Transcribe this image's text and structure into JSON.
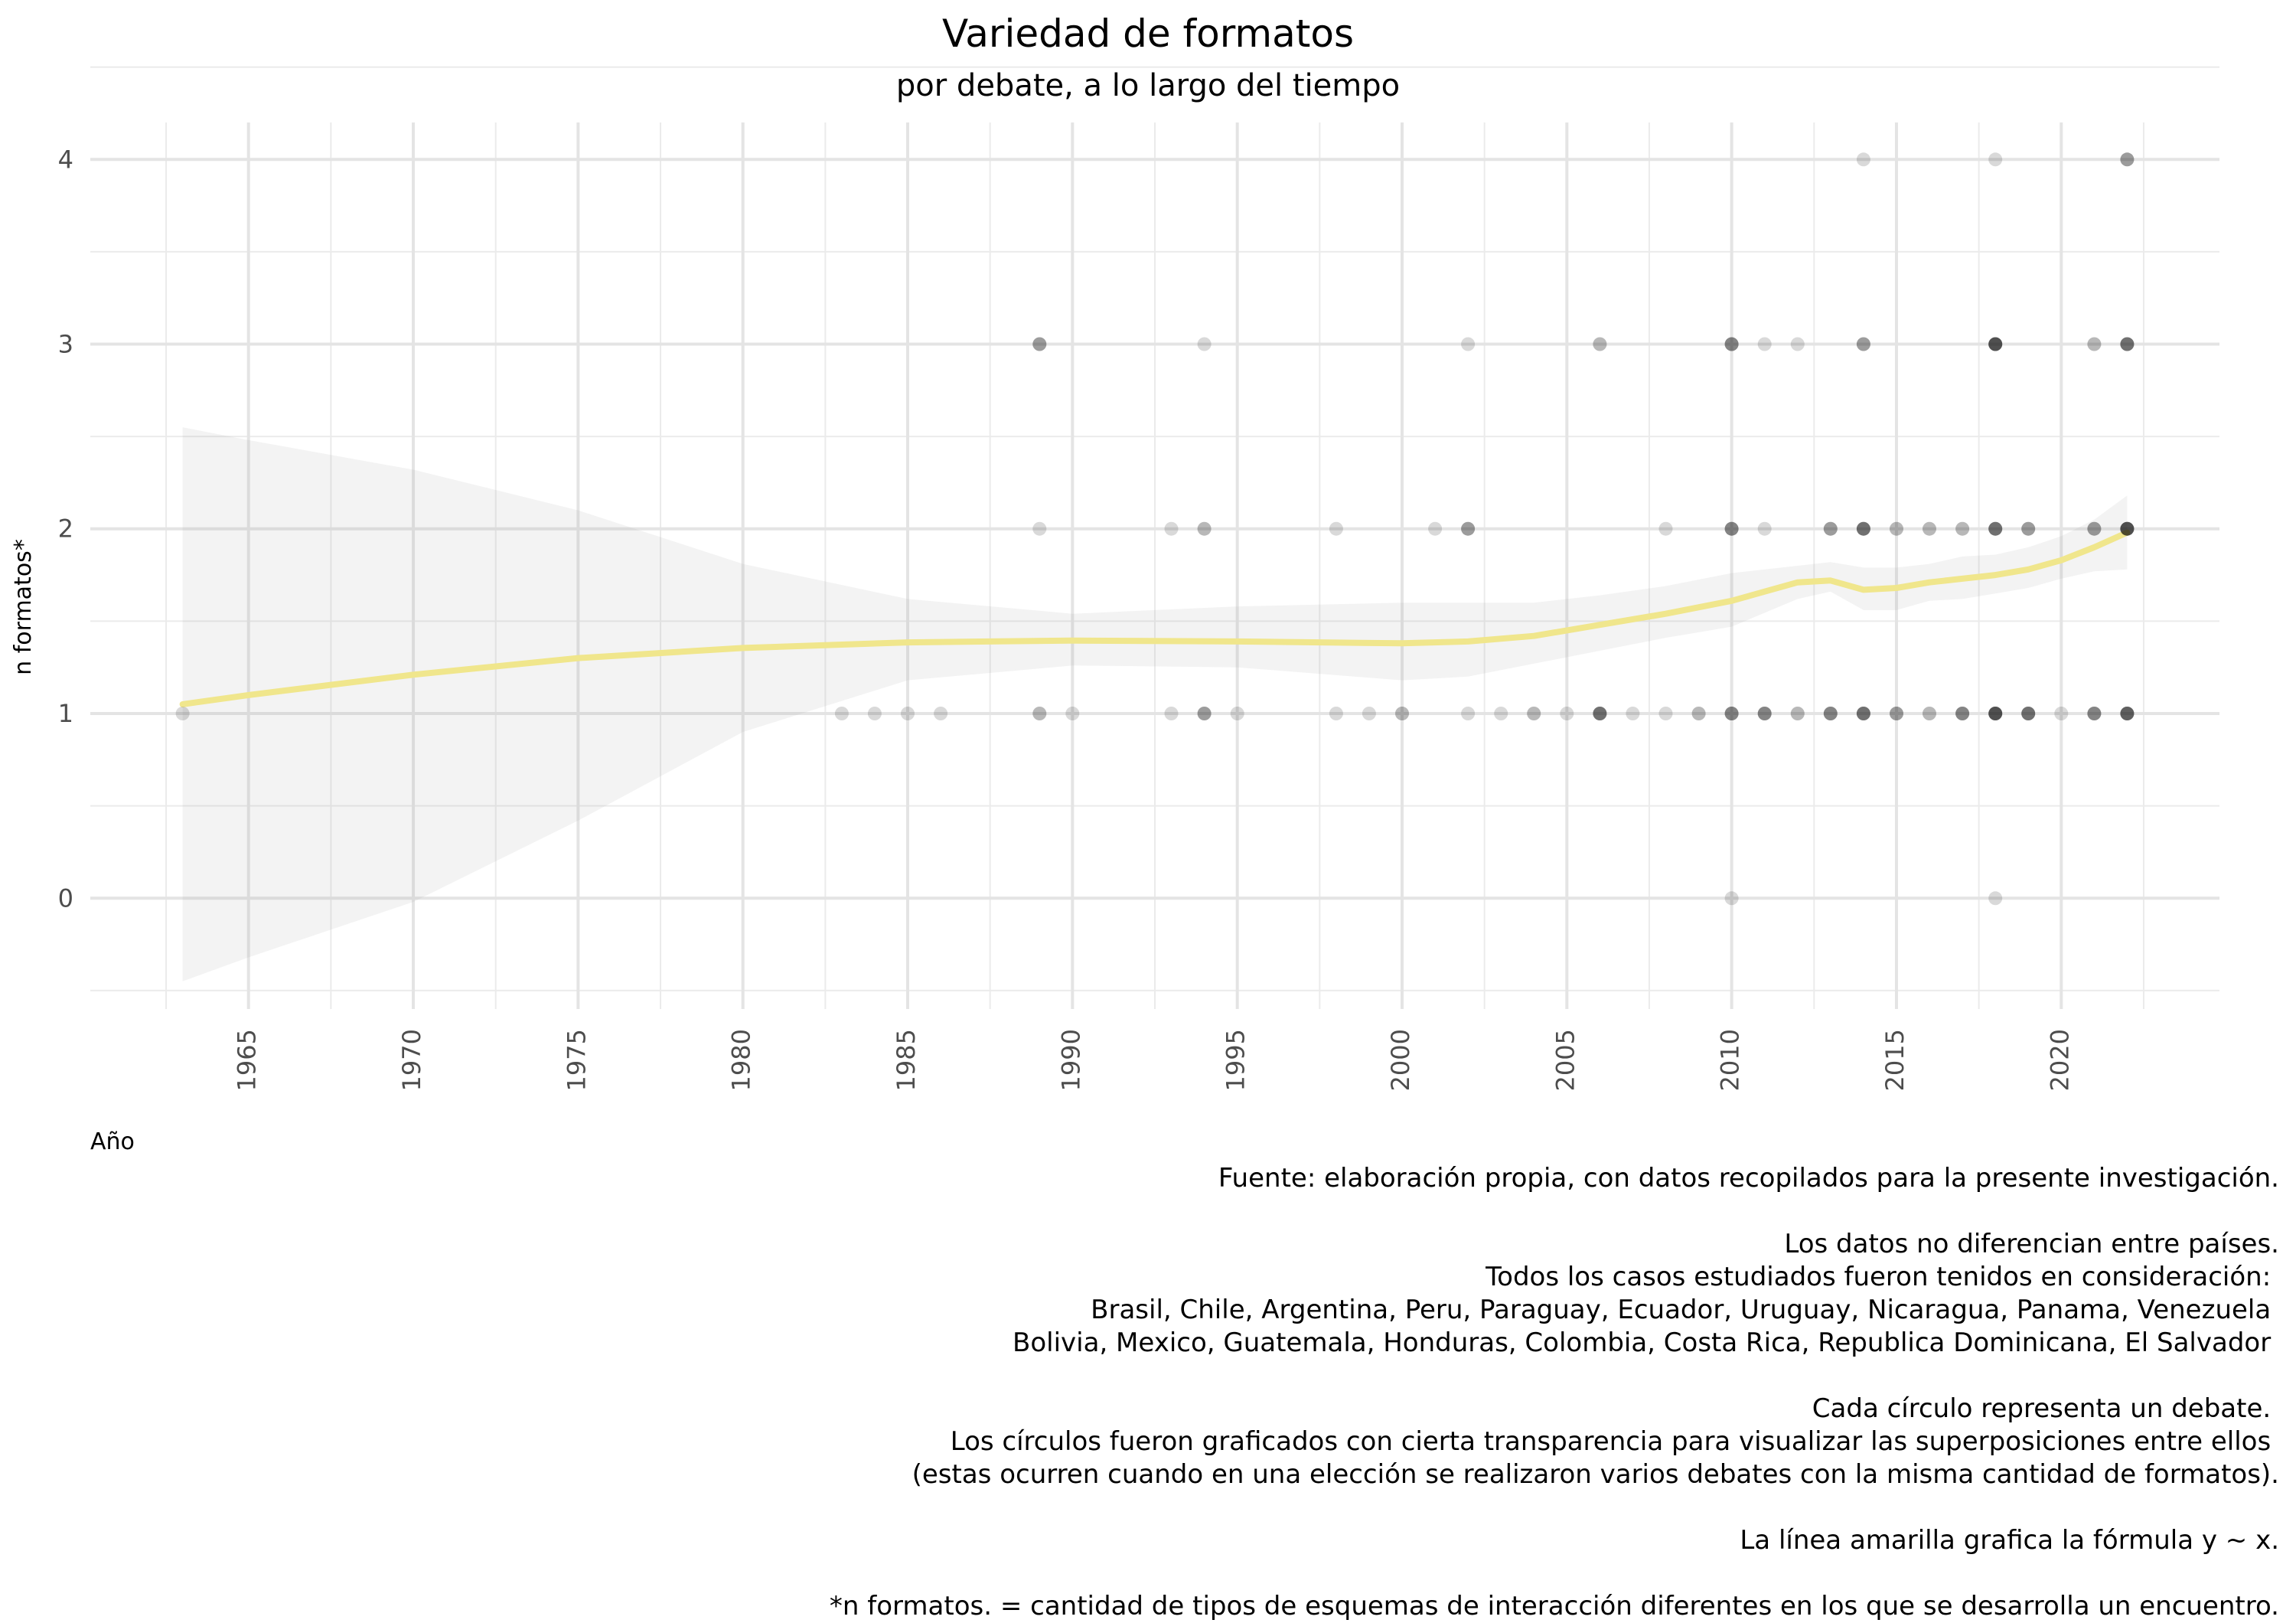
{
  "chart_data": {
    "type": "scatter",
    "title": "Variedad de formatos",
    "subtitle": "por debate, a lo largo del tiempo",
    "xlabel": "Año",
    "ylabel": "n formatos*",
    "xlim": [
      1960.2,
      2024.8
    ],
    "ylim": [
      -0.6,
      4.2
    ],
    "x_ticks": [
      1965,
      1970,
      1975,
      1980,
      1985,
      1990,
      1995,
      2000,
      2005,
      2010,
      2015,
      2020
    ],
    "y_ticks": [
      0,
      1,
      2,
      3,
      4
    ],
    "grid": true,
    "point_color": "#000000",
    "point_alpha": 0.15,
    "points": [
      [
        1963,
        1
      ],
      [
        1983,
        1
      ],
      [
        1984,
        1
      ],
      [
        1985,
        1
      ],
      [
        1986,
        1
      ],
      [
        1989,
        1
      ],
      [
        1989,
        1
      ],
      [
        1989,
        2
      ],
      [
        1989,
        3
      ],
      [
        1989,
        3
      ],
      [
        1989,
        3
      ],
      [
        1990,
        1
      ],
      [
        1993,
        1
      ],
      [
        1993,
        2
      ],
      [
        1994,
        1
      ],
      [
        1994,
        1
      ],
      [
        1994,
        1
      ],
      [
        1994,
        2
      ],
      [
        1994,
        2
      ],
      [
        1994,
        3
      ],
      [
        1995,
        1
      ],
      [
        1998,
        1
      ],
      [
        1998,
        2
      ],
      [
        1999,
        1
      ],
      [
        2000,
        1
      ],
      [
        2000,
        1
      ],
      [
        2001,
        2
      ],
      [
        2002,
        1
      ],
      [
        2002,
        2
      ],
      [
        2002,
        2
      ],
      [
        2002,
        2
      ],
      [
        2002,
        3
      ],
      [
        2003,
        1
      ],
      [
        2004,
        1
      ],
      [
        2004,
        1
      ],
      [
        2005,
        1
      ],
      [
        2006,
        1
      ],
      [
        2006,
        1
      ],
      [
        2006,
        1
      ],
      [
        2006,
        1
      ],
      [
        2006,
        1
      ],
      [
        2006,
        3
      ],
      [
        2006,
        3
      ],
      [
        2007,
        1
      ],
      [
        2008,
        1
      ],
      [
        2008,
        2
      ],
      [
        2009,
        1
      ],
      [
        2009,
        1
      ],
      [
        2010,
        0
      ],
      [
        2010,
        1
      ],
      [
        2010,
        1
      ],
      [
        2010,
        1
      ],
      [
        2010,
        1
      ],
      [
        2010,
        2
      ],
      [
        2010,
        2
      ],
      [
        2010,
        2
      ],
      [
        2010,
        2
      ],
      [
        2010,
        3
      ],
      [
        2010,
        3
      ],
      [
        2010,
        3
      ],
      [
        2010,
        3
      ],
      [
        2011,
        1
      ],
      [
        2011,
        1
      ],
      [
        2011,
        1
      ],
      [
        2011,
        1
      ],
      [
        2011,
        2
      ],
      [
        2011,
        3
      ],
      [
        2012,
        1
      ],
      [
        2012,
        1
      ],
      [
        2012,
        3
      ],
      [
        2013,
        1
      ],
      [
        2013,
        1
      ],
      [
        2013,
        1
      ],
      [
        2013,
        1
      ],
      [
        2013,
        2
      ],
      [
        2013,
        2
      ],
      [
        2013,
        2
      ],
      [
        2014,
        1
      ],
      [
        2014,
        1
      ],
      [
        2014,
        1
      ],
      [
        2014,
        1
      ],
      [
        2014,
        1
      ],
      [
        2014,
        2
      ],
      [
        2014,
        2
      ],
      [
        2014,
        2
      ],
      [
        2014,
        2
      ],
      [
        2014,
        2
      ],
      [
        2014,
        3
      ],
      [
        2014,
        3
      ],
      [
        2014,
        3
      ],
      [
        2014,
        4
      ],
      [
        2015,
        1
      ],
      [
        2015,
        1
      ],
      [
        2015,
        1
      ],
      [
        2015,
        2
      ],
      [
        2015,
        2
      ],
      [
        2016,
        1
      ],
      [
        2016,
        1
      ],
      [
        2016,
        2
      ],
      [
        2016,
        2
      ],
      [
        2017,
        1
      ],
      [
        2017,
        1
      ],
      [
        2017,
        1
      ],
      [
        2017,
        1
      ],
      [
        2017,
        2
      ],
      [
        2017,
        2
      ],
      [
        2018,
        0
      ],
      [
        2018,
        1
      ],
      [
        2018,
        1
      ],
      [
        2018,
        1
      ],
      [
        2018,
        1
      ],
      [
        2018,
        1
      ],
      [
        2018,
        1
      ],
      [
        2018,
        1
      ],
      [
        2018,
        2
      ],
      [
        2018,
        2
      ],
      [
        2018,
        2
      ],
      [
        2018,
        2
      ],
      [
        2018,
        2
      ],
      [
        2018,
        3
      ],
      [
        2018,
        3
      ],
      [
        2018,
        3
      ],
      [
        2018,
        3
      ],
      [
        2018,
        3
      ],
      [
        2018,
        3
      ],
      [
        2018,
        3
      ],
      [
        2018,
        4
      ],
      [
        2019,
        1
      ],
      [
        2019,
        1
      ],
      [
        2019,
        1
      ],
      [
        2019,
        1
      ],
      [
        2019,
        1
      ],
      [
        2019,
        2
      ],
      [
        2019,
        2
      ],
      [
        2019,
        2
      ],
      [
        2020,
        1
      ],
      [
        2021,
        1
      ],
      [
        2021,
        1
      ],
      [
        2021,
        1
      ],
      [
        2021,
        1
      ],
      [
        2021,
        2
      ],
      [
        2021,
        2
      ],
      [
        2021,
        2
      ],
      [
        2021,
        3
      ],
      [
        2021,
        3
      ],
      [
        2022,
        1
      ],
      [
        2022,
        1
      ],
      [
        2022,
        1
      ],
      [
        2022,
        1
      ],
      [
        2022,
        1
      ],
      [
        2022,
        1
      ],
      [
        2022,
        2
      ],
      [
        2022,
        2
      ],
      [
        2022,
        2
      ],
      [
        2022,
        2
      ],
      [
        2022,
        2
      ],
      [
        2022,
        2
      ],
      [
        2022,
        2
      ],
      [
        2022,
        3
      ],
      [
        2022,
        3
      ],
      [
        2022,
        3
      ],
      [
        2022,
        3
      ],
      [
        2022,
        3
      ],
      [
        2022,
        4
      ],
      [
        2022,
        4
      ],
      [
        2022,
        4
      ]
    ],
    "smooth_formula": "y ~ x",
    "smooth_color": "#f0e68c",
    "smooth_line": {
      "x": [
        1963,
        1965,
        1970,
        1975,
        1980,
        1985,
        1990,
        1995,
        2000,
        2002,
        2004,
        2006,
        2008,
        2010,
        2012,
        2013,
        2014,
        2015,
        2016,
        2017,
        2018,
        2019,
        2020,
        2021,
        2022
      ],
      "y": [
        1.05,
        1.1,
        1.21,
        1.3,
        1.355,
        1.385,
        1.395,
        1.39,
        1.38,
        1.39,
        1.42,
        1.48,
        1.54,
        1.61,
        1.71,
        1.72,
        1.67,
        1.68,
        1.71,
        1.73,
        1.75,
        1.78,
        1.83,
        1.9,
        1.98
      ]
    },
    "confidence_band": {
      "x": [
        1963,
        1965,
        1970,
        1975,
        1980,
        1985,
        1990,
        1995,
        2000,
        2002,
        2004,
        2006,
        2008,
        2010,
        2012,
        2013,
        2014,
        2015,
        2016,
        2017,
        2018,
        2019,
        2020,
        2021,
        2022
      ],
      "lower": [
        -0.45,
        -0.32,
        -0.02,
        0.42,
        0.9,
        1.18,
        1.26,
        1.25,
        1.18,
        1.2,
        1.27,
        1.34,
        1.41,
        1.47,
        1.62,
        1.66,
        1.56,
        1.56,
        1.61,
        1.62,
        1.65,
        1.68,
        1.73,
        1.77,
        1.78
      ],
      "upper": [
        2.55,
        2.48,
        2.32,
        2.1,
        1.81,
        1.62,
        1.54,
        1.58,
        1.6,
        1.6,
        1.6,
        1.64,
        1.69,
        1.76,
        1.8,
        1.82,
        1.79,
        1.79,
        1.81,
        1.85,
        1.86,
        1.9,
        1.96,
        2.05,
        2.18
      ]
    }
  },
  "caption": {
    "lines": [
      "Fuente: elaboración propia, con datos recopilados para la presente investigación.",
      "",
      "Los datos no diferencian entre países.",
      "Todos los casos estudiados fueron tenidos en consideración: ",
      "Brasil, Chile, Argentina, Peru, Paraguay, Ecuador, Uruguay, Nicaragua, Panama, Venezuela ",
      "Bolivia, Mexico, Guatemala, Honduras, Colombia, Costa Rica, Republica Dominicana, El Salvador ",
      "",
      "Cada círculo representa un debate. ",
      "Los círculos fueron graficados con cierta transparencia para visualizar las superposiciones entre ellos ",
      "(estas ocurren cuando en una elección se realizaron varios debates con la misma cantidad de formatos).",
      "",
      "La línea amarilla grafica la fórmula y ~ x.",
      "",
      "*n formatos. = cantidad de tipos de esquemas de interacción diferentes en los que se desarrolla un encuentro."
    ]
  }
}
